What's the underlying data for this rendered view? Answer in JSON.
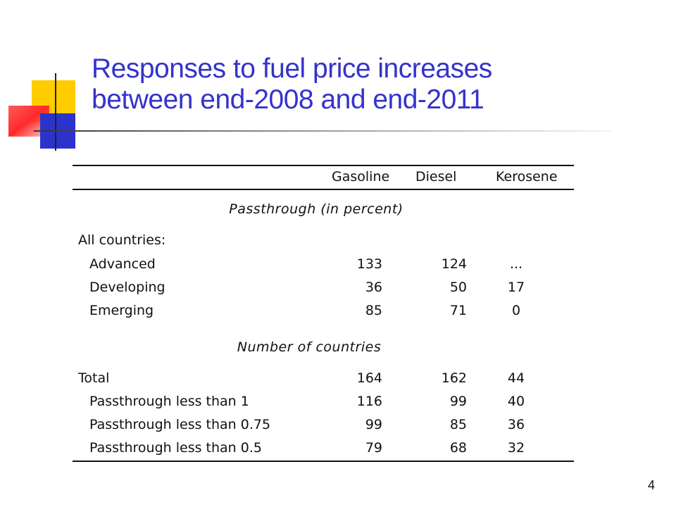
{
  "slide": {
    "title_line1": "Responses to fuel price increases",
    "title_line2": "between end-2008 and end-2011",
    "page_number": "4",
    "accent_color": "#3333cc"
  },
  "table": {
    "headers": [
      "Gasoline",
      "Diesel",
      "Kerosene"
    ],
    "section1_title": "Passthrough (in percent)",
    "group1_label": "All countries:",
    "section1_rows": [
      {
        "label": "Advanced",
        "values": [
          "133",
          "124",
          "..."
        ]
      },
      {
        "label": "Developing",
        "values": [
          "36",
          "50",
          "17"
        ]
      },
      {
        "label": "Emerging",
        "values": [
          "85",
          "71",
          "0"
        ]
      }
    ],
    "section2_title": "Number of countries",
    "section2_rows": [
      {
        "label": "Total",
        "values": [
          "164",
          "162",
          "44"
        ]
      },
      {
        "label": "Passthrough less than 1",
        "values": [
          "116",
          "99",
          "40"
        ]
      },
      {
        "label": "Passthrough less than 0.75",
        "values": [
          "99",
          "85",
          "36"
        ]
      },
      {
        "label": "Passthrough less than 0.5",
        "values": [
          "79",
          "68",
          "32"
        ]
      }
    ]
  }
}
